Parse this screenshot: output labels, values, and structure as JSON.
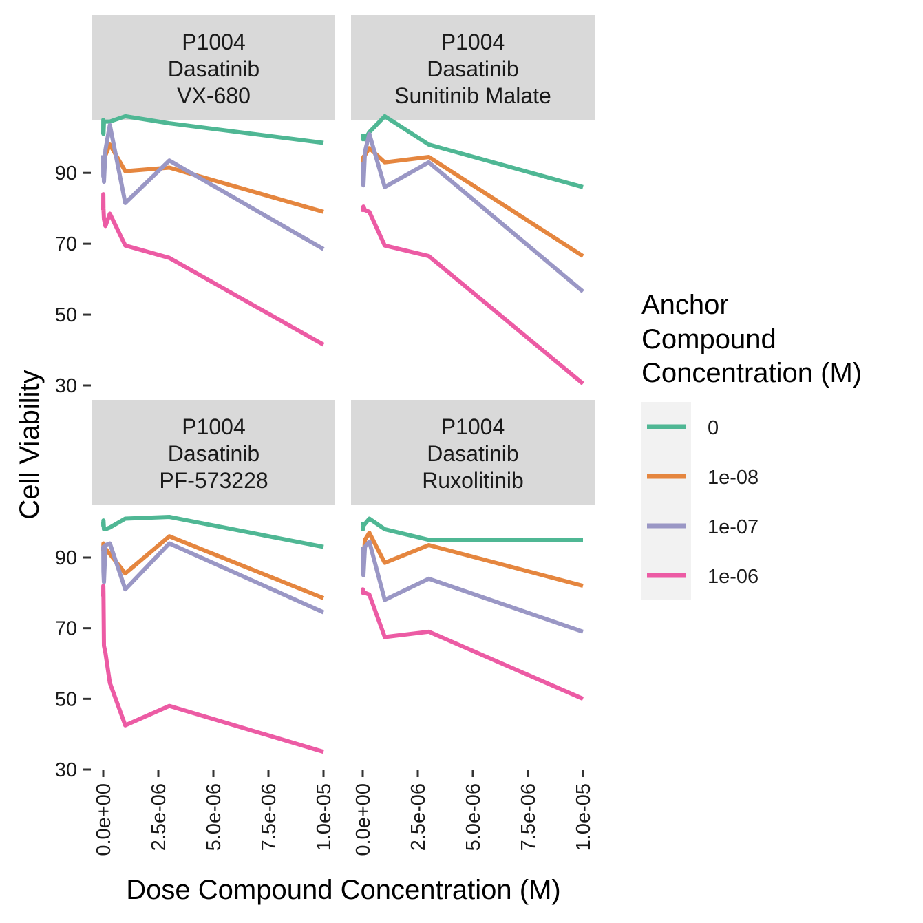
{
  "chart_data": {
    "type": "line",
    "xlabel": "Dose Compound Concentration (M)",
    "ylabel": "Cell Viability",
    "xlim": [
      0,
      1e-05
    ],
    "ylim": [
      30,
      105
    ],
    "x_ticks": [
      0,
      2.5e-06,
      5e-06,
      7.5e-06,
      1e-05
    ],
    "x_tick_labels": [
      "0.0e+00",
      "2.5e-06",
      "5.0e-06",
      "7.5e-06",
      "1.0e-05"
    ],
    "y_ticks": [
      30,
      50,
      70,
      90
    ],
    "y_tick_labels": [
      "30",
      "50",
      "70",
      "90"
    ],
    "grid": false,
    "legend": {
      "title": [
        "Anchor",
        "Compound",
        "Concentration (M)"
      ],
      "position": "right",
      "entries": [
        {
          "label": "0",
          "color": "#4FB794"
        },
        {
          "label": "1e-08",
          "color": "#E5863F"
        },
        {
          "label": "1e-07",
          "color": "#9A97C5"
        },
        {
          "label": "1e-06",
          "color": "#EC5BA4"
        }
      ]
    },
    "panels": [
      {
        "strip": [
          "P1004",
          "Dasatinib",
          "VX-680"
        ],
        "series": [
          {
            "name": "0",
            "color": "#4FB794",
            "x": [
              1e-10,
              3e-09,
              1e-08,
              3e-08,
              1e-07,
              3e-07,
              1e-06,
              3e-06,
              1e-05
            ],
            "y": [
              101,
              105,
              101,
              104.5,
              104.5,
              104.5,
              106,
              104,
              98.5
            ]
          },
          {
            "name": "1e-08",
            "color": "#E5863F",
            "x": [
              1e-10,
              3e-09,
              1e-08,
              3e-08,
              1e-07,
              3e-07,
              1e-06,
              3e-06,
              1e-05
            ],
            "y": [
              92,
              93,
              91.5,
              93,
              95,
              98,
              90.5,
              91.5,
              79
            ]
          },
          {
            "name": "1e-07",
            "color": "#9A97C5",
            "x": [
              1e-10,
              3e-09,
              1e-08,
              3e-08,
              1e-07,
              3e-07,
              1e-06,
              3e-06,
              1e-05
            ],
            "y": [
              95,
              89,
              94,
              87.5,
              96.5,
              103.5,
              81.5,
              93.5,
              68.5
            ]
          },
          {
            "name": "1e-06",
            "color": "#EC5BA4",
            "x": [
              1e-10,
              3e-09,
              1e-08,
              3e-08,
              1e-07,
              3e-07,
              1e-06,
              3e-06,
              1e-05
            ],
            "y": [
              79.5,
              84,
              80,
              77,
              75,
              78.5,
              69.5,
              66,
              41.5
            ]
          }
        ]
      },
      {
        "strip": [
          "P1004",
          "Dasatinib",
          "Sunitinib Malate"
        ],
        "series": [
          {
            "name": "0",
            "color": "#4FB794",
            "x": [
              1e-10,
              3e-09,
              1e-08,
              3e-08,
              1e-07,
              3e-07,
              1e-06,
              3e-06,
              1e-05
            ],
            "y": [
              101,
              100,
              99.5,
              100.5,
              99.5,
              101.5,
              106,
              98,
              86
            ]
          },
          {
            "name": "1e-08",
            "color": "#E5863F",
            "x": [
              1e-10,
              3e-09,
              1e-08,
              3e-08,
              1e-07,
              3e-07,
              1e-06,
              3e-06,
              1e-05
            ],
            "y": [
              94,
              93,
              92,
              94.5,
              95,
              97,
              93,
              94.5,
              66.5
            ]
          },
          {
            "name": "1e-07",
            "color": "#9A97C5",
            "x": [
              1e-10,
              3e-09,
              1e-08,
              3e-08,
              1e-07,
              3e-07,
              1e-06,
              3e-06,
              1e-05
            ],
            "y": [
              93,
              88,
              91,
              86.5,
              96,
              101,
              86,
              93,
              56.5
            ]
          },
          {
            "name": "1e-06",
            "color": "#EC5BA4",
            "x": [
              1e-10,
              3e-09,
              1e-08,
              3e-08,
              1e-07,
              3e-07,
              1e-06,
              3e-06,
              1e-05
            ],
            "y": [
              79,
              80,
              79.5,
              80.5,
              79.5,
              79,
              69.5,
              66.5,
              30.5
            ]
          }
        ]
      },
      {
        "strip": [
          "P1004",
          "Dasatinib",
          "PF-573228"
        ],
        "series": [
          {
            "name": "0",
            "color": "#4FB794",
            "x": [
              1e-10,
              3e-09,
              1e-08,
              3e-08,
              1e-07,
              3e-07,
              1e-06,
              3e-06,
              1e-05
            ],
            "y": [
              100,
              99,
              100.5,
              98,
              98,
              98.5,
              101,
              101.5,
              93
            ]
          },
          {
            "name": "1e-08",
            "color": "#E5863F",
            "x": [
              1e-10,
              3e-09,
              1e-08,
              3e-08,
              1e-07,
              3e-07,
              1e-06,
              3e-06,
              1e-05
            ],
            "y": [
              93,
              92,
              94,
              91,
              92.5,
              91,
              85.5,
              96,
              78.5
            ]
          },
          {
            "name": "1e-07",
            "color": "#9A97C5",
            "x": [
              1e-10,
              3e-09,
              1e-08,
              3e-08,
              1e-07,
              3e-07,
              1e-06,
              3e-06,
              1e-05
            ],
            "y": [
              92,
              93,
              86,
              83,
              93.5,
              94,
              81,
              94,
              74.5
            ]
          },
          {
            "name": "1e-06",
            "color": "#EC5BA4",
            "x": [
              1e-10,
              3e-09,
              1e-08,
              3e-08,
              1e-07,
              3e-07,
              1e-06,
              3e-06,
              1e-05
            ],
            "y": [
              79,
              82,
              80,
              65,
              63,
              54.5,
              42.5,
              48,
              35
            ]
          }
        ]
      },
      {
        "strip": [
          "P1004",
          "Dasatinib",
          "Ruxolitinib"
        ],
        "series": [
          {
            "name": "0",
            "color": "#4FB794",
            "x": [
              1e-10,
              3e-09,
              1e-08,
              3e-08,
              1e-07,
              3e-07,
              1e-06,
              3e-06,
              1e-05
            ],
            "y": [
              99,
              99.5,
              98,
              99,
              99.5,
              101,
              98,
              95,
              95
            ]
          },
          {
            "name": "1e-08",
            "color": "#E5863F",
            "x": [
              1e-10,
              3e-09,
              1e-08,
              3e-08,
              1e-07,
              3e-07,
              1e-06,
              3e-06,
              1e-05
            ],
            "y": [
              93,
              91,
              92,
              88,
              95,
              97,
              88.5,
              93.5,
              82
            ]
          },
          {
            "name": "1e-07",
            "color": "#9A97C5",
            "x": [
              1e-10,
              3e-09,
              1e-08,
              3e-08,
              1e-07,
              3e-07,
              1e-06,
              3e-06,
              1e-05
            ],
            "y": [
              93,
              86,
              90,
              85,
              93,
              94.5,
              78,
              84,
              69
            ]
          },
          {
            "name": "1e-06",
            "color": "#EC5BA4",
            "x": [
              1e-10,
              3e-09,
              1e-08,
              3e-08,
              1e-07,
              3e-07,
              1e-06,
              3e-06,
              1e-05
            ],
            "y": [
              80,
              81,
              80,
              80,
              80,
              79.5,
              67.5,
              69,
              50
            ]
          }
        ]
      }
    ]
  }
}
